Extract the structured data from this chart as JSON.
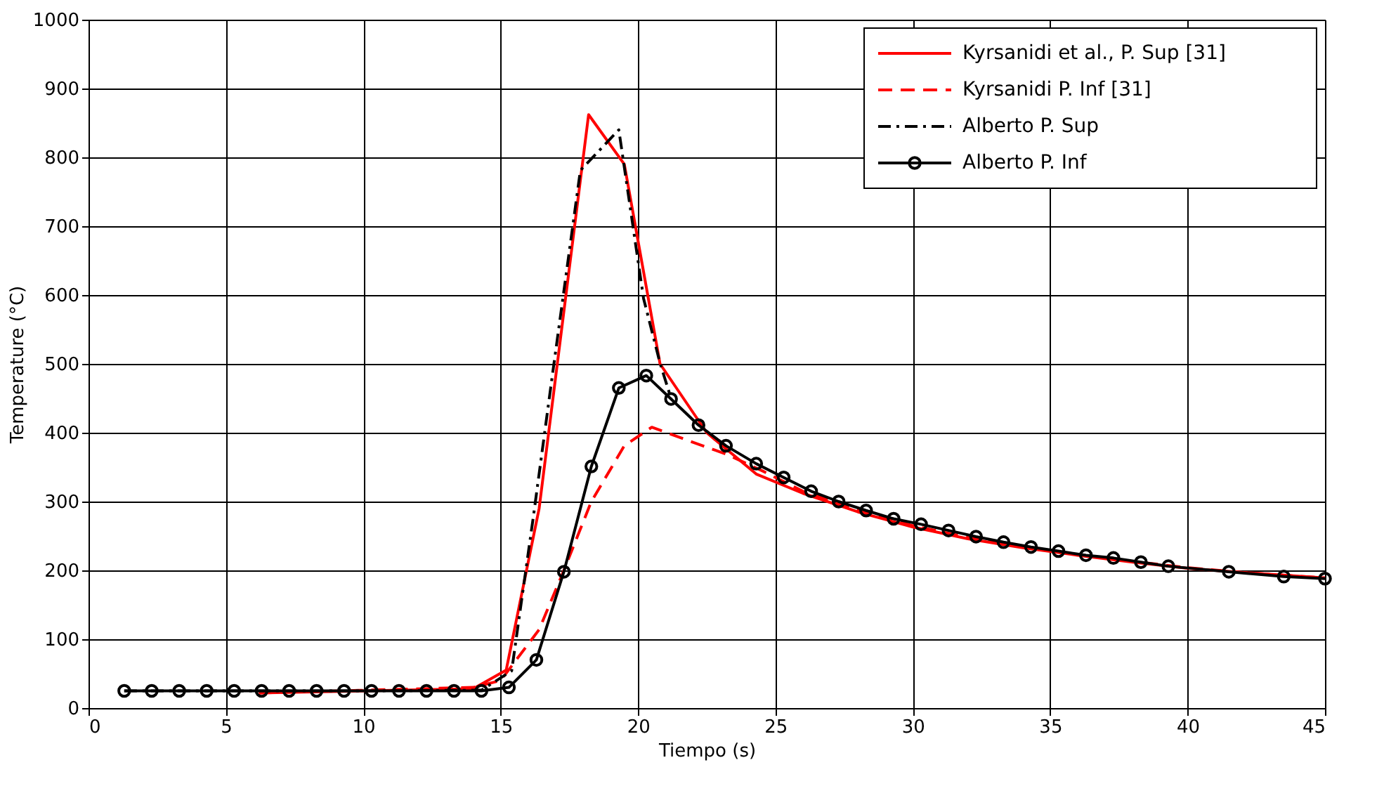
{
  "chart_data": {
    "type": "line",
    "xlabel": "Tiempo (s)",
    "ylabel": "Temperature (°C)",
    "xlim": [
      0,
      45
    ],
    "xticks": [
      0,
      5,
      10,
      15,
      20,
      25,
      30,
      35,
      40,
      45
    ],
    "ylim": [
      0,
      1000
    ],
    "yticks": [
      0,
      100,
      200,
      300,
      400,
      500,
      600,
      700,
      800,
      900,
      1000
    ],
    "grid": true,
    "legend": "top right",
    "series": [
      {
        "name": "Kyrsanidi et al., P. Sup [31]",
        "color": "#ff0000",
        "line_style": "solid",
        "marker": "none",
        "x": [
          6.2,
          14,
          15.2,
          16.4,
          18.2,
          19.5,
          20.8,
          22.5,
          24.3,
          26,
          28,
          30,
          32,
          34,
          36,
          38,
          40,
          42,
          45
        ],
        "values": [
          22,
          28,
          55,
          290,
          862,
          790,
          500,
          400,
          340,
          312,
          285,
          263,
          246,
          233,
          222,
          212,
          203,
          197,
          189
        ]
      },
      {
        "name": "Kyrsanidi P. Inf [31]",
        "color": "#ff0000",
        "line_style": "dashed",
        "marker": "none",
        "x": [
          6.2,
          14,
          15,
          16.4,
          17.3,
          18.3,
          19.5,
          20.5,
          21.8,
          23.2,
          24.5,
          26,
          28,
          30,
          32,
          34,
          36,
          38,
          40,
          42,
          45
        ],
        "values": [
          22,
          30,
          40,
          114,
          200,
          300,
          381,
          408,
          389,
          369,
          345,
          315,
          288,
          265,
          248,
          234,
          223,
          213,
          204,
          197,
          189
        ]
      },
      {
        "name": "Alberto P. Sup",
        "color": "#000000",
        "line_style": "dashdot",
        "marker": "none",
        "x": [
          1.3,
          5.3,
          10.3,
          14.3,
          15.4,
          16.2,
          16.9,
          17.9,
          19.3,
          20.2,
          20.8,
          21.2
        ],
        "values": [
          25,
          25,
          25,
          26,
          54,
          281,
          489,
          781,
          840,
          595,
          501,
          450
        ]
      },
      {
        "name": "Alberto P. Inf",
        "color": "#000000",
        "line_style": "solid",
        "marker": "circle",
        "x": [
          1.3,
          2.3,
          3.3,
          4.3,
          5.3,
          6.3,
          7.3,
          8.3,
          9.3,
          10.3,
          11.3,
          12.3,
          13.3,
          14.3,
          15.3,
          16.3,
          17.3,
          18.3,
          19.3,
          20.3,
          21.2,
          22.2,
          23.2,
          24.3,
          25.3,
          26.3,
          27.3,
          28.3,
          29.3,
          30.3,
          31.3,
          32.3,
          33.3,
          34.3,
          35.3,
          36.3,
          37.3,
          38.3,
          39.3,
          41.5,
          43.5,
          45
        ],
        "values": [
          25,
          25,
          25,
          25,
          25,
          25,
          25,
          25,
          25,
          25,
          25,
          25,
          25,
          25,
          30,
          70,
          198,
          351,
          465,
          483,
          449,
          411,
          381,
          355,
          335,
          315,
          300,
          287,
          275,
          267,
          258,
          249,
          241,
          234,
          228,
          222,
          218,
          212,
          206,
          198,
          191,
          188
        ]
      }
    ]
  }
}
